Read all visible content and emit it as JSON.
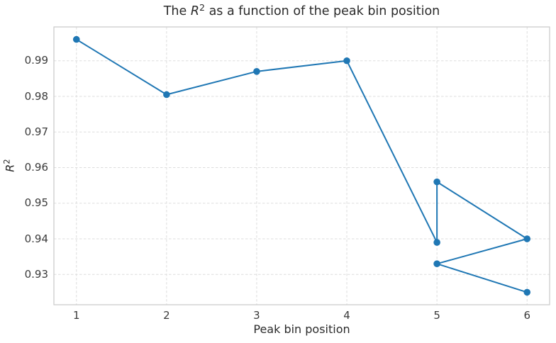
{
  "chart_data": {
    "type": "line",
    "title": "The R² as a function of the peak bin position",
    "title_math": {
      "prefix": "The ",
      "symbol": "R",
      "sup": "2",
      "suffix": " as a function of the peak bin position"
    },
    "xlabel": "Peak bin position",
    "ylabel": {
      "symbol": "R",
      "sup": "2"
    },
    "x": [
      1,
      2,
      3,
      4,
      5,
      5,
      6,
      5,
      6
    ],
    "y": [
      0.996,
      0.9805,
      0.987,
      0.99,
      0.939,
      0.956,
      0.94,
      0.933,
      0.925
    ],
    "xticks": {
      "values": [
        1,
        2,
        3,
        4,
        5,
        6
      ],
      "labels": [
        "1",
        "2",
        "3",
        "4",
        "5",
        "6"
      ]
    },
    "yticks": {
      "values": [
        0.93,
        0.94,
        0.95,
        0.96,
        0.97,
        0.98,
        0.99
      ],
      "labels": [
        "0.93",
        "0.94",
        "0.95",
        "0.96",
        "0.97",
        "0.98",
        "0.99"
      ]
    },
    "xlim": [
      0.75,
      6.25
    ],
    "ylim": [
      0.9215,
      0.9995
    ],
    "grid": {
      "on": true,
      "style": "dashed",
      "color": "#dddddd"
    },
    "legend": "none",
    "style": {
      "line_color": "#1f77b4",
      "marker": "circle",
      "marker_color": "#1f77b4",
      "marker_radius": 4.8,
      "line_width": 2,
      "spine_color": "#c9c9c9",
      "text_color": "#2b2b2b",
      "background": "#ffffff"
    }
  }
}
